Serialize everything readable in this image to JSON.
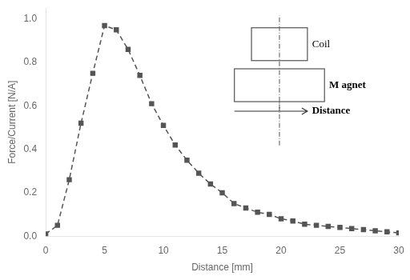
{
  "chart_data": {
    "type": "line",
    "x": [
      0,
      1,
      2,
      3,
      4,
      5,
      6,
      7,
      8,
      9,
      10,
      11,
      12,
      13,
      14,
      15,
      16,
      17,
      18,
      19,
      20,
      21,
      22,
      23,
      24,
      25,
      26,
      27,
      28,
      29,
      30
    ],
    "values": [
      0.01,
      0.05,
      0.26,
      0.52,
      0.75,
      0.97,
      0.95,
      0.86,
      0.74,
      0.61,
      0.51,
      0.42,
      0.35,
      0.29,
      0.24,
      0.2,
      0.15,
      0.13,
      0.11,
      0.1,
      0.08,
      0.07,
      0.055,
      0.05,
      0.045,
      0.04,
      0.035,
      0.03,
      0.025,
      0.02,
      0.015
    ],
    "xlabel": "Distance [mm]",
    "ylabel": "Force/Current [N/A]",
    "xlim": [
      0,
      30
    ],
    "ylim": [
      0,
      1.05
    ],
    "xticks": [
      0,
      5,
      10,
      15,
      20,
      25,
      30
    ],
    "yticks": [
      {
        "value": 0,
        "label": "0.0"
      },
      0.2,
      0.4,
      0.6,
      0.8,
      {
        "value": 1,
        "label": "1.0"
      }
    ],
    "color": "#555555",
    "marker": "square",
    "line_style": "dashed",
    "grid": false,
    "annotations": [
      "Coil",
      "M agnet",
      "Distance"
    ]
  }
}
